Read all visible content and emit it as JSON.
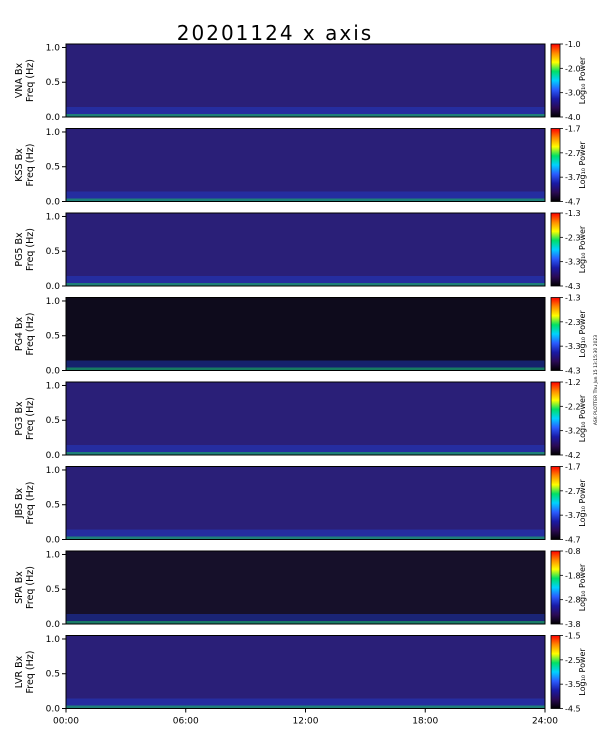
{
  "title": "20201124 x axis",
  "side_note": "ASK PLOTTER Thu Jun 15 13:15:30 2023",
  "chart_data": {
    "type": "heatmap",
    "x_tick_labels": [
      "00:00",
      "06:00",
      "12:00",
      "18:00",
      "24:00"
    ],
    "x_range_hours": [
      0,
      24
    ],
    "y_tick_labels": [
      "0.0",
      "0.5",
      "1.0"
    ],
    "y_range_hz": [
      0,
      1.05
    ],
    "colorbar_label": "Log₁₀ Power",
    "colormap": [
      "#000000",
      "#2a0a55",
      "#1a1aa6",
      "#2a5cff",
      "#00d2ff",
      "#00e066",
      "#ffff00",
      "#ff8a00",
      "#ff0000"
    ],
    "panels": [
      {
        "station": "VNA Bx",
        "ylabel": "Freq (Hz)",
        "cbar_ticks": [
          "-1.0",
          "-2.0",
          "-3.0",
          "-4.0"
        ]
      },
      {
        "station": "KSS Bx",
        "ylabel": "Freq (Hz)",
        "cbar_ticks": [
          "-1.7",
          "-2.7",
          "-3.7",
          "-4.7"
        ]
      },
      {
        "station": "PG5 Bx",
        "ylabel": "Freq (Hz)",
        "cbar_ticks": [
          "-1.3",
          "-2.3",
          "-3.3",
          "-4.3"
        ]
      },
      {
        "station": "PG4 Bx",
        "ylabel": "Freq (Hz)",
        "cbar_ticks": [
          "-1.3",
          "-2.3",
          "-3.3",
          "-4.3"
        ]
      },
      {
        "station": "PG3 Bx",
        "ylabel": "Freq (Hz)",
        "cbar_ticks": [
          "-1.2",
          "-2.2",
          "-3.2",
          "-4.2"
        ]
      },
      {
        "station": "JBS Bx",
        "ylabel": "Freq (Hz)",
        "cbar_ticks": [
          "-1.7",
          "-2.7",
          "-3.7",
          "-4.7"
        ]
      },
      {
        "station": "SPA Bx",
        "ylabel": "Freq (Hz)",
        "cbar_ticks": [
          "-0.8",
          "-1.8",
          "-2.8",
          "-3.8"
        ]
      },
      {
        "station": "LVR Bx",
        "ylabel": "Freq (Hz)",
        "cbar_ticks": [
          "-1.5",
          "-2.5",
          "-3.5",
          "-4.5"
        ]
      }
    ]
  }
}
